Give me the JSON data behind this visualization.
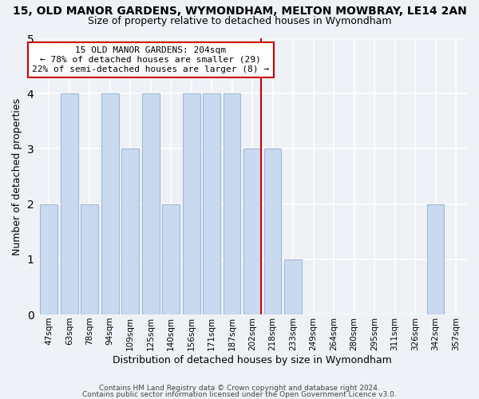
{
  "title": "15, OLD MANOR GARDENS, WYMONDHAM, MELTON MOWBRAY, LE14 2AN",
  "subtitle": "Size of property relative to detached houses in Wymondham",
  "xlabel": "Distribution of detached houses by size in Wymondham",
  "ylabel": "Number of detached properties",
  "categories": [
    "47sqm",
    "63sqm",
    "78sqm",
    "94sqm",
    "109sqm",
    "125sqm",
    "140sqm",
    "156sqm",
    "171sqm",
    "187sqm",
    "202sqm",
    "218sqm",
    "233sqm",
    "249sqm",
    "264sqm",
    "280sqm",
    "295sqm",
    "311sqm",
    "326sqm",
    "342sqm",
    "357sqm"
  ],
  "values": [
    2,
    4,
    2,
    4,
    3,
    4,
    2,
    4,
    4,
    4,
    3,
    3,
    1,
    0,
    0,
    0,
    0,
    0,
    0,
    2,
    0
  ],
  "bar_color": "#c8d9f0",
  "bar_edgecolor": "#a0b8d8",
  "vline_color": "#cc0000",
  "vline_index": 10,
  "annotation_title": "15 OLD MANOR GARDENS: 204sqm",
  "annotation_line1": "← 78% of detached houses are smaller (29)",
  "annotation_line2": "22% of semi-detached houses are larger (8) →",
  "annotation_box_edgecolor": "#cc0000",
  "ylim": [
    0,
    5
  ],
  "yticks": [
    0,
    1,
    2,
    3,
    4,
    5
  ],
  "footer1": "Contains HM Land Registry data © Crown copyright and database right 2024.",
  "footer2": "Contains public sector information licensed under the Open Government Licence v3.0.",
  "background_color": "#eef2f7",
  "title_fontsize": 10,
  "subtitle_fontsize": 9
}
